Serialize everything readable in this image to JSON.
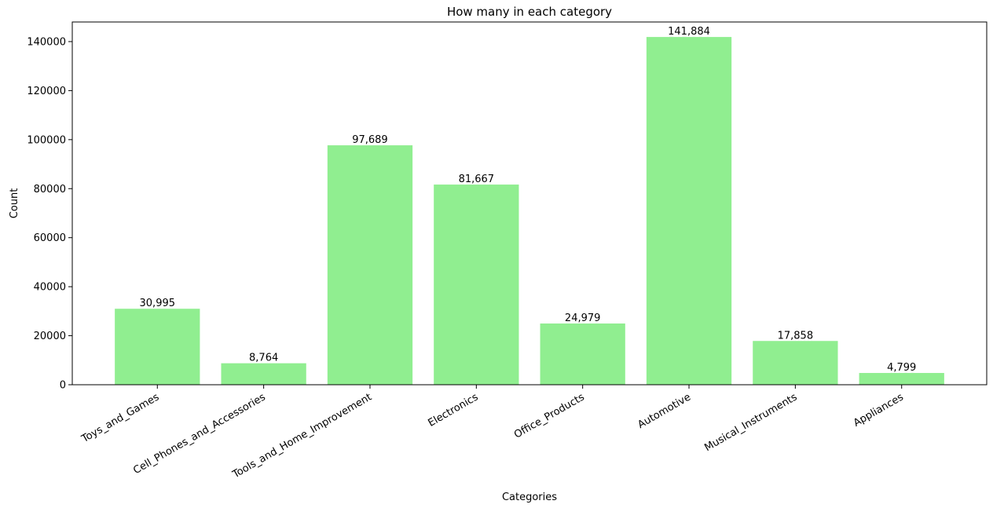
{
  "chart_data": {
    "type": "bar",
    "title": "How many in each category",
    "xlabel": "Categories",
    "ylabel": "Count",
    "categories": [
      "Toys_and_Games",
      "Cell_Phones_and_Accessories",
      "Tools_and_Home_Improvement",
      "Electronics",
      "Office_Products",
      "Automotive",
      "Musical_Instruments",
      "Appliances"
    ],
    "values": [
      30995,
      8764,
      97689,
      81667,
      24979,
      141884,
      17858,
      4799
    ],
    "value_labels": [
      "30,995",
      "8,764",
      "97,689",
      "81,667",
      "24,979",
      "141,884",
      "17,858",
      "4,799"
    ],
    "ylim": [
      0,
      148000
    ],
    "yticks": [
      0,
      20000,
      40000,
      60000,
      80000,
      100000,
      120000,
      140000
    ],
    "ytick_labels": [
      "0",
      "20000",
      "40000",
      "60000",
      "80000",
      "100000",
      "120000",
      "140000"
    ],
    "bar_color": "#90ee90",
    "grid": false,
    "xtick_rotation_deg": 30
  }
}
